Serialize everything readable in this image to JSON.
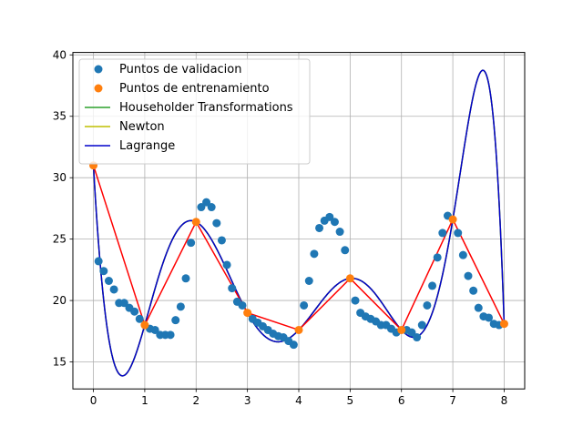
{
  "chart_data": {
    "type": "line",
    "title": "",
    "xlabel": "",
    "ylabel": "",
    "xlim": [
      -0.4,
      8.4
    ],
    "ylim": [
      12.8,
      40.2
    ],
    "xticks": [
      0,
      1,
      2,
      3,
      4,
      5,
      6,
      7,
      8
    ],
    "yticks": [
      15,
      20,
      25,
      30,
      35,
      40
    ],
    "grid": true,
    "legend_position": "top-left",
    "validation_points": {
      "name": "Puntos de validacion",
      "color": "#1f77b4",
      "x": [
        0.1,
        0.2,
        0.3,
        0.4,
        0.5,
        0.6,
        0.7,
        0.8,
        0.9,
        1.1,
        1.2,
        1.3,
        1.4,
        1.5,
        1.6,
        1.7,
        1.8,
        1.9,
        2.1,
        2.2,
        2.3,
        2.4,
        2.5,
        2.6,
        2.7,
        2.8,
        2.9,
        3.1,
        3.2,
        3.3,
        3.4,
        3.5,
        3.6,
        3.7,
        3.8,
        3.9,
        4.1,
        4.2,
        4.3,
        4.4,
        4.5,
        4.6,
        4.7,
        4.8,
        4.9,
        5.1,
        5.2,
        5.3,
        5.4,
        5.5,
        5.6,
        5.7,
        5.8,
        5.9,
        6.1,
        6.2,
        6.3,
        6.4,
        6.5,
        6.6,
        6.7,
        6.8,
        6.9,
        7.1,
        7.2,
        7.3,
        7.4,
        7.5,
        7.6,
        7.7,
        7.8,
        7.9
      ],
      "y": [
        23.2,
        22.4,
        21.6,
        20.9,
        19.8,
        19.8,
        19.4,
        19.1,
        18.5,
        17.7,
        17.6,
        17.2,
        17.2,
        17.2,
        18.4,
        19.5,
        21.8,
        24.7,
        27.6,
        28.0,
        27.6,
        26.3,
        24.9,
        22.9,
        21.0,
        19.9,
        19.6,
        18.5,
        18.2,
        17.9,
        17.6,
        17.3,
        17.1,
        17.0,
        16.7,
        16.4,
        19.6,
        21.6,
        23.8,
        25.9,
        26.5,
        26.8,
        26.4,
        25.6,
        24.1,
        20.0,
        19.0,
        18.7,
        18.5,
        18.3,
        18.0,
        18.0,
        17.7,
        17.4,
        17.6,
        17.4,
        17.0,
        18.0,
        19.6,
        21.2,
        23.5,
        25.5,
        26.9,
        25.5,
        23.7,
        22.0,
        20.8,
        19.4,
        18.7,
        18.6,
        18.1,
        18.0
      ]
    },
    "training_points": {
      "name": "Puntos de entrenamiento",
      "color": "#ff7f0e",
      "x": [
        0,
        1,
        2,
        3,
        4,
        5,
        6,
        7,
        8
      ],
      "y": [
        31.0,
        18.0,
        26.4,
        19.0,
        17.6,
        21.8,
        17.6,
        26.6,
        18.1
      ]
    },
    "series": [
      {
        "name": "Householder Transformations",
        "color": "#2ca02c",
        "x": [
          0,
          1,
          2,
          3,
          4,
          5,
          6,
          7,
          8
        ],
        "y": [
          31.0,
          18.0,
          26.4,
          19.0,
          17.6,
          21.8,
          17.6,
          26.6,
          18.1
        ]
      },
      {
        "name": "Newton",
        "color": "#bfbf00",
        "x": [
          0,
          1,
          2,
          3,
          4,
          5,
          6,
          7,
          8
        ],
        "y": [
          31.0,
          18.0,
          26.4,
          19.0,
          17.6,
          21.8,
          17.6,
          26.6,
          18.1
        ]
      },
      {
        "name": "Lagrange",
        "color": "#0000cc",
        "x": [
          0,
          1,
          2,
          3,
          4,
          5,
          6,
          7,
          8
        ],
        "y": [
          31.0,
          18.0,
          26.4,
          19.0,
          17.6,
          21.8,
          17.6,
          26.6,
          18.1
        ]
      }
    ],
    "linear_fit": {
      "color": "#ff0000",
      "x": [
        0,
        1,
        2,
        3,
        4,
        5,
        6,
        7,
        8
      ],
      "y": [
        31.0,
        18.0,
        26.4,
        19.0,
        17.6,
        21.8,
        17.6,
        26.6,
        18.1
      ]
    }
  }
}
